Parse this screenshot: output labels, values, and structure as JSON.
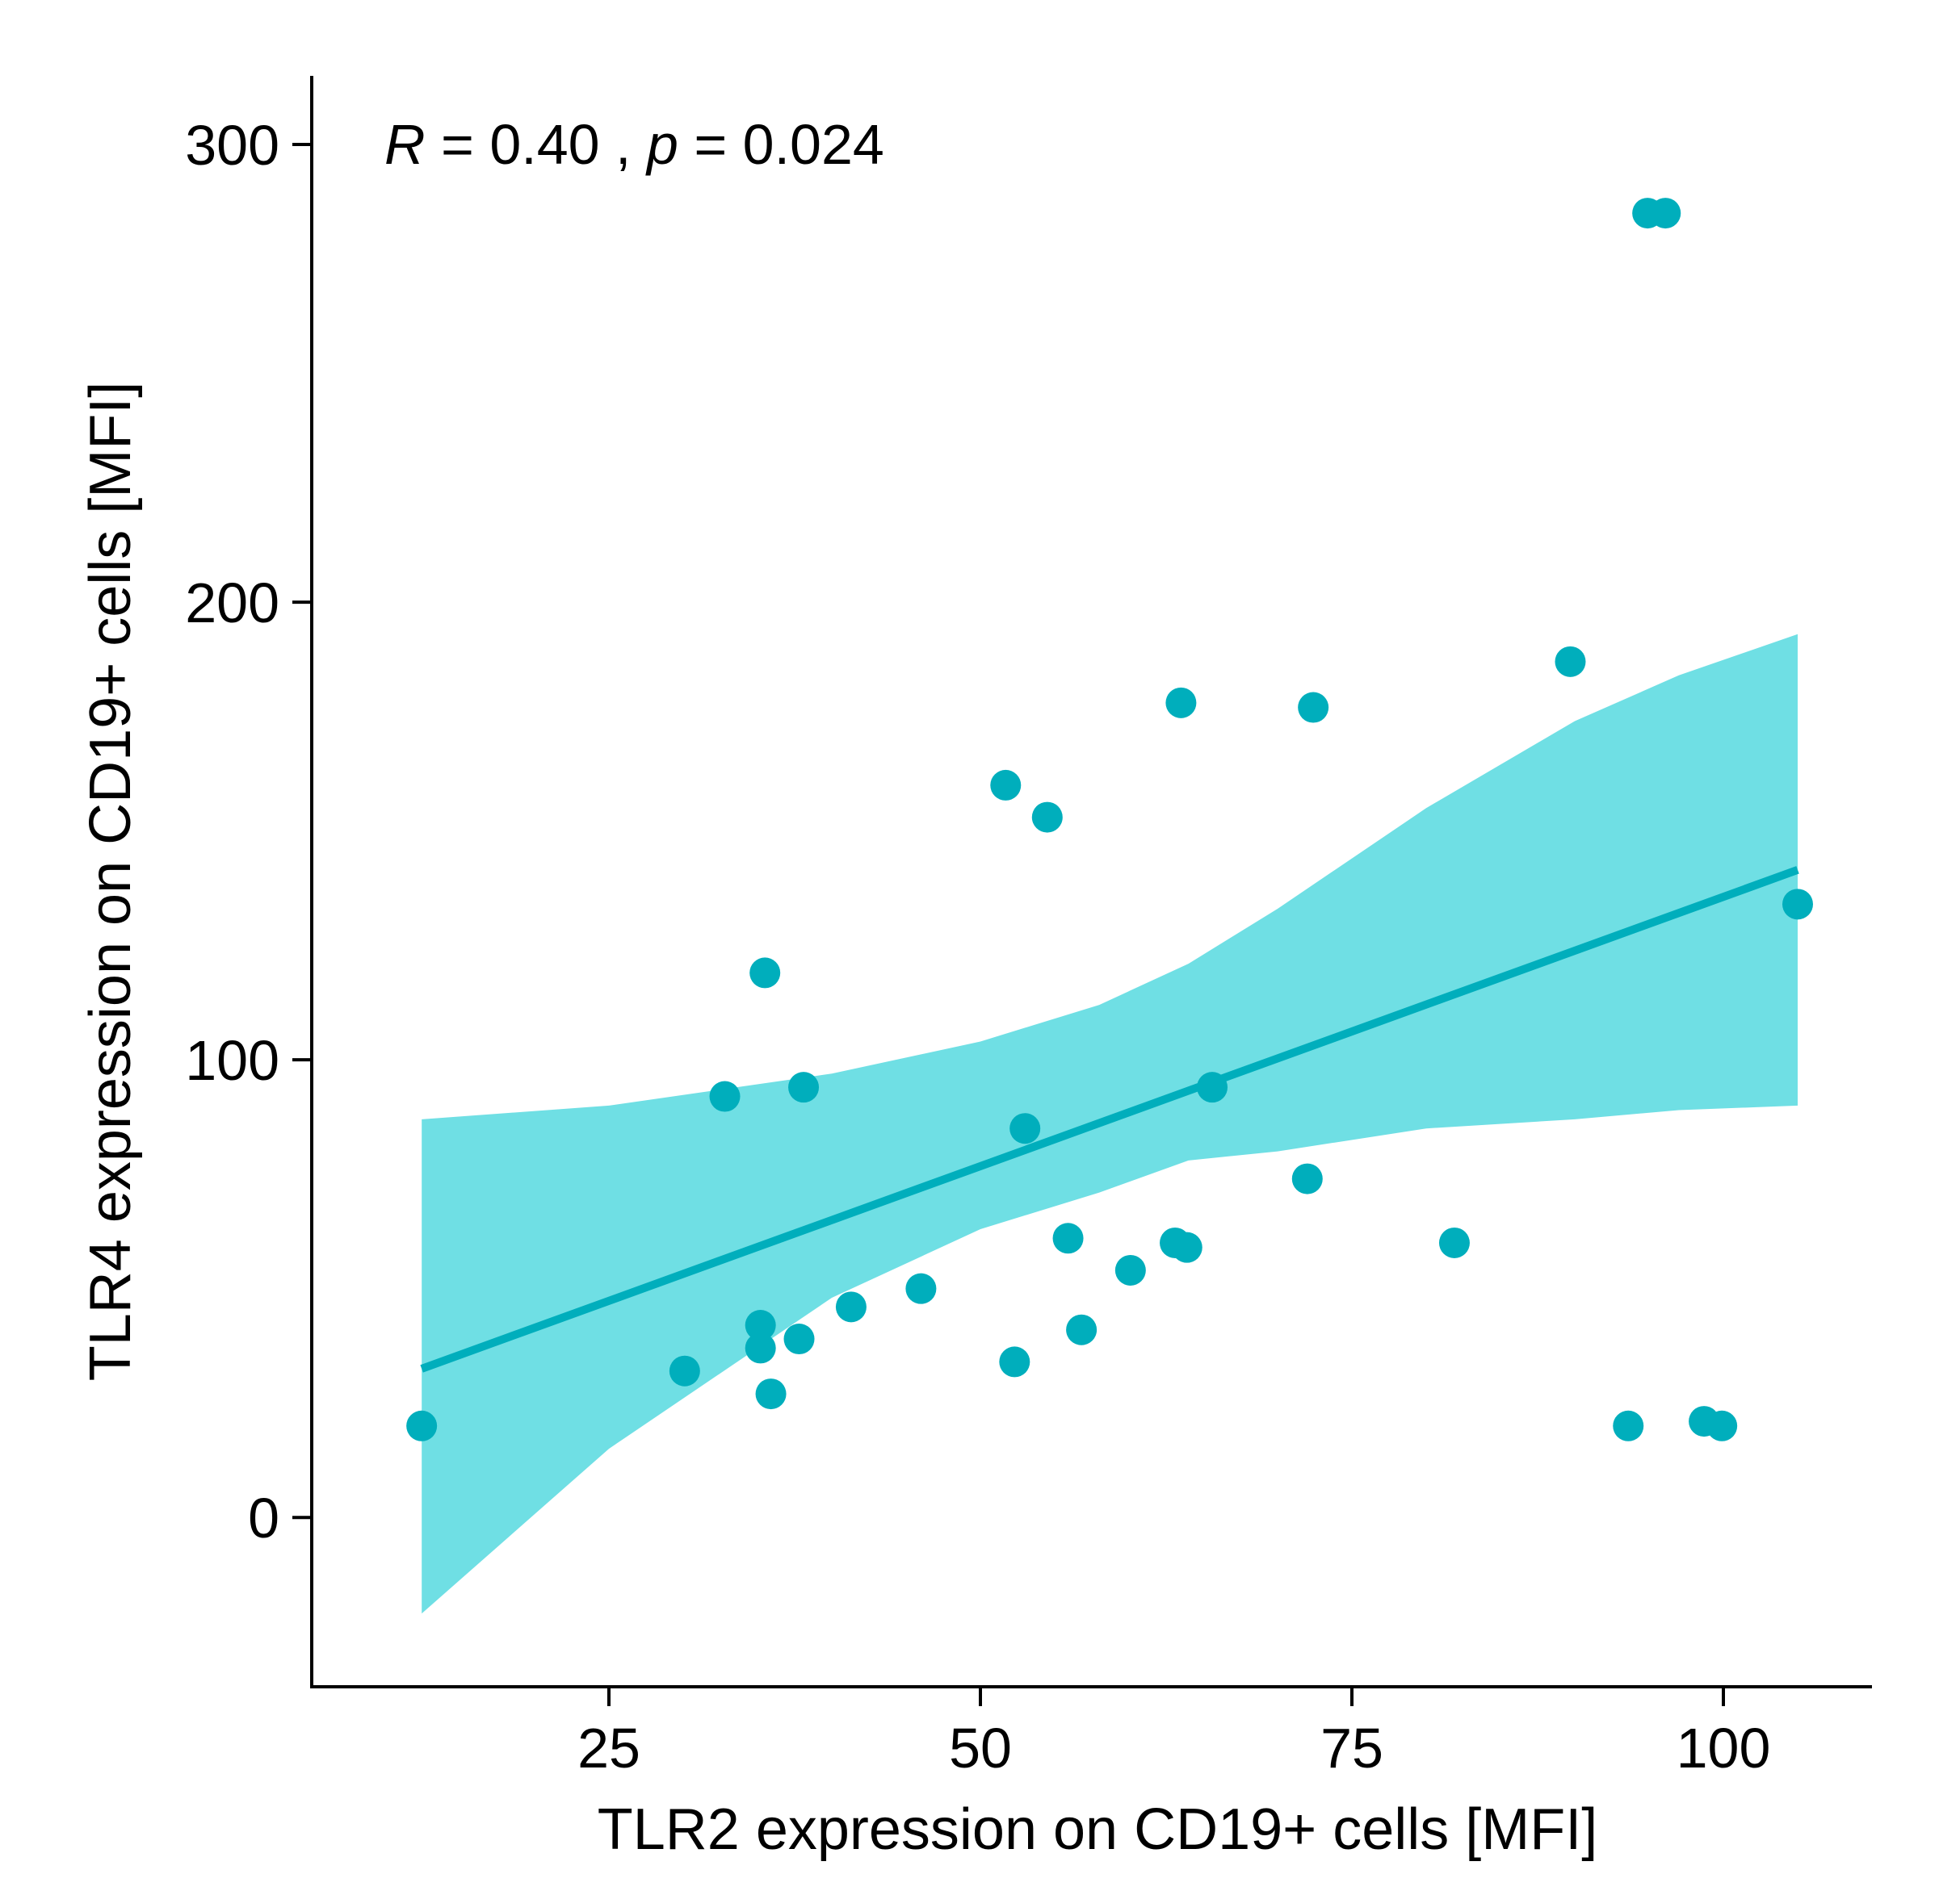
{
  "chart_data": {
    "type": "scatter",
    "title": "",
    "xlabel": "TLR2 expression on CD19+ cells [MFI]",
    "ylabel": "TLR4 expression on CD19+ cells [MFI]",
    "xlim": [
      5,
      110
    ],
    "ylim": [
      -37,
      315
    ],
    "x_ticks": [
      25,
      50,
      75,
      100
    ],
    "y_ticks": [
      0,
      100,
      200,
      300
    ],
    "x_tick_labels": [
      "25",
      "50",
      "75",
      "100"
    ],
    "y_tick_labels": [
      "0",
      "100",
      "200",
      "300"
    ],
    "grid": false,
    "annotation": {
      "r_symbol": "R",
      "r_text": " = 0.40 , ",
      "p_symbol": "p",
      "p_text": " = 0.024"
    },
    "points": [
      {
        "x": 12.4,
        "y": 20
      },
      {
        "x": 30.1,
        "y": 32
      },
      {
        "x": 32.8,
        "y": 92
      },
      {
        "x": 35.2,
        "y": 42
      },
      {
        "x": 35.2,
        "y": 37
      },
      {
        "x": 35.5,
        "y": 119
      },
      {
        "x": 35.9,
        "y": 27
      },
      {
        "x": 37.8,
        "y": 39
      },
      {
        "x": 38.1,
        "y": 94
      },
      {
        "x": 41.3,
        "y": 46
      },
      {
        "x": 46.0,
        "y": 50
      },
      {
        "x": 51.7,
        "y": 160
      },
      {
        "x": 52.3,
        "y": 34
      },
      {
        "x": 53.0,
        "y": 85
      },
      {
        "x": 54.5,
        "y": 153
      },
      {
        "x": 55.9,
        "y": 61
      },
      {
        "x": 56.8,
        "y": 41
      },
      {
        "x": 60.1,
        "y": 54
      },
      {
        "x": 63.1,
        "y": 60
      },
      {
        "x": 63.5,
        "y": 178
      },
      {
        "x": 63.9,
        "y": 59
      },
      {
        "x": 65.6,
        "y": 94
      },
      {
        "x": 72.0,
        "y": 74
      },
      {
        "x": 72.4,
        "y": 177
      },
      {
        "x": 81.9,
        "y": 60
      },
      {
        "x": 89.7,
        "y": 187
      },
      {
        "x": 93.6,
        "y": 20
      },
      {
        "x": 94.9,
        "y": 285
      },
      {
        "x": 96.1,
        "y": 285
      },
      {
        "x": 98.7,
        "y": 21
      },
      {
        "x": 99.9,
        "y": 20
      },
      {
        "x": 105.0,
        "y": 134
      }
    ],
    "fit_line": {
      "x": [
        12.4,
        105.0
      ],
      "y": [
        32.5,
        141.5
      ]
    },
    "confidence_band": {
      "x": [
        12.4,
        25,
        40,
        50,
        58,
        64,
        70,
        80,
        90,
        97,
        105.0
      ],
      "upper": [
        87,
        90,
        97,
        104,
        112,
        121,
        133,
        155,
        174,
        184,
        193
      ],
      "lower": [
        -21,
        15,
        48,
        63,
        71,
        78,
        80,
        85,
        87,
        89,
        90
      ]
    },
    "colors": {
      "points": "#00aebc",
      "line": "#00aebc",
      "band": "#6fdfe4"
    }
  }
}
